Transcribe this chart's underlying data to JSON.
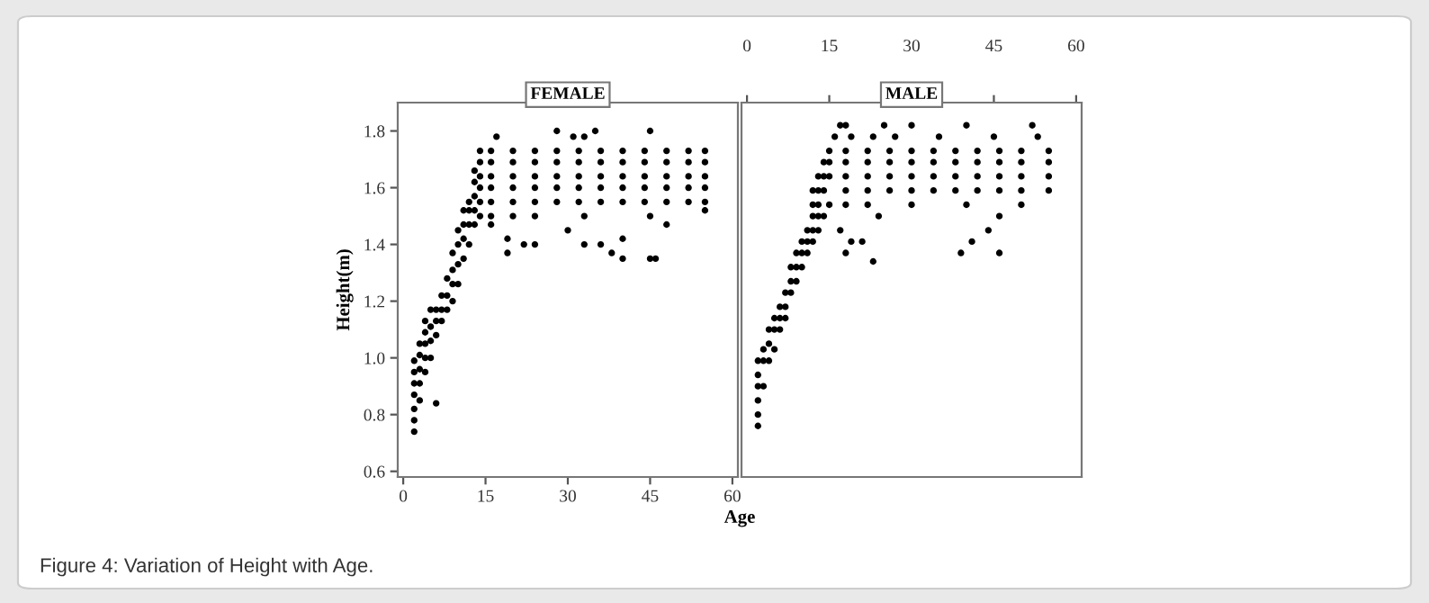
{
  "chart_data": [
    {
      "type": "scatter",
      "title": "FEMALE",
      "xlabel": "Age",
      "ylabel": "Height(m)",
      "annotations": [
        "Figure 4: Variation of Height with Age."
      ],
      "marker": "circle",
      "grid": false,
      "legend": false,
      "xlim": [
        -1,
        61
      ],
      "xticks": [
        0,
        15,
        30,
        45,
        60
      ],
      "ylim": [
        0.58,
        1.9
      ],
      "yticks": [
        0.6,
        0.8,
        {
          "value": 1.0,
          "label": "1.0"
        },
        1.2,
        1.4,
        1.6,
        1.8
      ],
      "series": [
        {
          "color": "#000000",
          "x": [
            2,
            2,
            2,
            2,
            2,
            2,
            2,
            3,
            3,
            3,
            3,
            3,
            4,
            4,
            4,
            4,
            4,
            5,
            5,
            5,
            5,
            6,
            6,
            6,
            6,
            7,
            7,
            7,
            8,
            8,
            8,
            9,
            9,
            9,
            9,
            10,
            10,
            10,
            10,
            11,
            11,
            11,
            11,
            12,
            12,
            12,
            12,
            13,
            13,
            13,
            13,
            13,
            14,
            14,
            14,
            14,
            14,
            14,
            16,
            16,
            16,
            16,
            16,
            20,
            20,
            20,
            20,
            20,
            24,
            24,
            24,
            24,
            24,
            28,
            28,
            28,
            28,
            28,
            32,
            32,
            32,
            32,
            32,
            36,
            36,
            36,
            36,
            36,
            40,
            40,
            40,
            40,
            40,
            44,
            44,
            44,
            44,
            44,
            48,
            48,
            48,
            48,
            48,
            52,
            52,
            52,
            52,
            52,
            55,
            55,
            55,
            55,
            55,
            16,
            20,
            24,
            33,
            45,
            16,
            17,
            19,
            19,
            22,
            24,
            28,
            30,
            31,
            33,
            33,
            35,
            36,
            38,
            40,
            40,
            45,
            45,
            46,
            48,
            55
          ],
          "values": [
            0.74,
            0.78,
            0.82,
            0.87,
            0.91,
            0.95,
            0.99,
            0.85,
            0.91,
            0.96,
            1.01,
            1.05,
            0.95,
            1.0,
            1.05,
            1.09,
            1.13,
            1.0,
            1.06,
            1.11,
            1.17,
            0.84,
            1.08,
            1.13,
            1.17,
            1.13,
            1.17,
            1.22,
            1.17,
            1.22,
            1.28,
            1.2,
            1.26,
            1.31,
            1.37,
            1.26,
            1.33,
            1.4,
            1.45,
            1.35,
            1.42,
            1.47,
            1.52,
            1.4,
            1.47,
            1.52,
            1.55,
            1.47,
            1.52,
            1.57,
            1.62,
            1.66,
            1.5,
            1.55,
            1.6,
            1.64,
            1.69,
            1.73,
            1.55,
            1.6,
            1.64,
            1.69,
            1.73,
            1.55,
            1.6,
            1.64,
            1.69,
            1.73,
            1.55,
            1.6,
            1.64,
            1.69,
            1.73,
            1.55,
            1.6,
            1.64,
            1.69,
            1.73,
            1.55,
            1.6,
            1.64,
            1.69,
            1.73,
            1.55,
            1.6,
            1.64,
            1.69,
            1.73,
            1.55,
            1.6,
            1.64,
            1.69,
            1.73,
            1.55,
            1.6,
            1.64,
            1.69,
            1.73,
            1.55,
            1.6,
            1.64,
            1.69,
            1.73,
            1.55,
            1.6,
            1.64,
            1.69,
            1.73,
            1.55,
            1.6,
            1.64,
            1.69,
            1.73,
            1.5,
            1.5,
            1.5,
            1.5,
            1.5,
            1.47,
            1.78,
            1.37,
            1.42,
            1.4,
            1.4,
            1.8,
            1.45,
            1.78,
            1.78,
            1.4,
            1.8,
            1.4,
            1.37,
            1.35,
            1.42,
            1.8,
            1.35,
            1.35,
            1.47,
            1.52
          ]
        }
      ]
    },
    {
      "type": "scatter",
      "title": "MALE",
      "marker": "circle",
      "grid": false,
      "legend": false,
      "tick_labels": "x",
      "xlim": [
        -1,
        61
      ],
      "xticks": [
        0,
        15,
        30,
        45,
        60
      ],
      "ylim": [
        0.58,
        1.9
      ],
      "series": [
        {
          "color": "#000000",
          "x": [
            2,
            2,
            2,
            2,
            2,
            2,
            3,
            3,
            3,
            4,
            4,
            4,
            5,
            5,
            5,
            6,
            6,
            6,
            7,
            7,
            7,
            8,
            8,
            8,
            9,
            9,
            9,
            10,
            10,
            10,
            11,
            11,
            11,
            12,
            12,
            12,
            12,
            12,
            13,
            13,
            13,
            13,
            13,
            14,
            14,
            14,
            14,
            15,
            15,
            15,
            15,
            16,
            17,
            18,
            18,
            18,
            18,
            22,
            22,
            22,
            22,
            26,
            26,
            26,
            26,
            30,
            30,
            30,
            30,
            34,
            34,
            34,
            34,
            38,
            38,
            38,
            38,
            42,
            42,
            42,
            42,
            46,
            46,
            46,
            46,
            50,
            50,
            50,
            50,
            55,
            55,
            55,
            55,
            19,
            23,
            27,
            35,
            45,
            53,
            18,
            25,
            30,
            40,
            52,
            18,
            22,
            30,
            40,
            50,
            19,
            21,
            41,
            17,
            44,
            24,
            46,
            23,
            39,
            46,
            18
          ],
          "values": [
            0.76,
            0.8,
            0.85,
            0.9,
            0.94,
            0.99,
            0.9,
            0.99,
            1.03,
            0.99,
            1.05,
            1.1,
            1.03,
            1.1,
            1.14,
            1.1,
            1.14,
            1.18,
            1.14,
            1.18,
            1.23,
            1.23,
            1.27,
            1.32,
            1.27,
            1.32,
            1.37,
            1.32,
            1.37,
            1.41,
            1.37,
            1.41,
            1.45,
            1.41,
            1.45,
            1.5,
            1.54,
            1.59,
            1.45,
            1.5,
            1.54,
            1.59,
            1.64,
            1.5,
            1.59,
            1.64,
            1.69,
            1.54,
            1.64,
            1.69,
            1.73,
            1.78,
            1.82,
            1.59,
            1.64,
            1.69,
            1.73,
            1.59,
            1.64,
            1.69,
            1.73,
            1.59,
            1.64,
            1.69,
            1.73,
            1.59,
            1.64,
            1.69,
            1.73,
            1.59,
            1.64,
            1.69,
            1.73,
            1.59,
            1.64,
            1.69,
            1.73,
            1.59,
            1.64,
            1.69,
            1.73,
            1.59,
            1.64,
            1.69,
            1.73,
            1.59,
            1.64,
            1.69,
            1.73,
            1.59,
            1.64,
            1.69,
            1.73,
            1.78,
            1.78,
            1.78,
            1.78,
            1.78,
            1.78,
            1.82,
            1.82,
            1.82,
            1.82,
            1.82,
            1.54,
            1.54,
            1.54,
            1.54,
            1.54,
            1.41,
            1.41,
            1.41,
            1.45,
            1.45,
            1.5,
            1.5,
            1.34,
            1.37,
            1.37,
            1.37
          ]
        }
      ]
    }
  ]
}
